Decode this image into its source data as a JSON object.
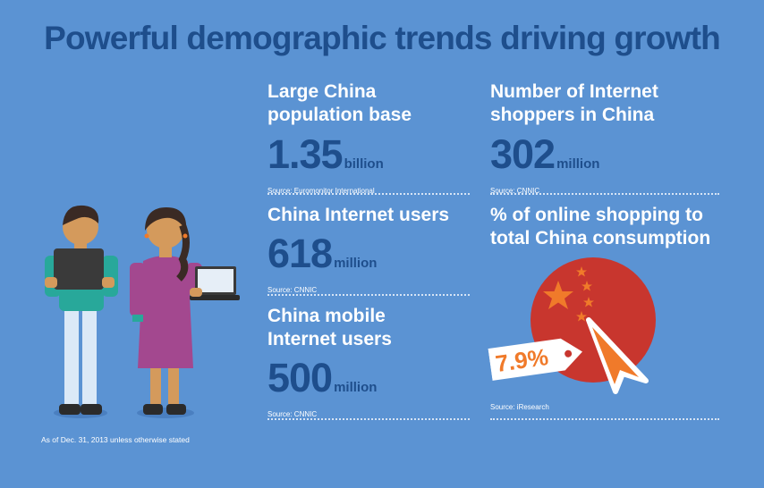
{
  "title": "Powerful demographic trends driving growth",
  "stats": {
    "population": {
      "label_line1": "Large China",
      "label_line2": "population base",
      "value": "1.35",
      "unit": "billion",
      "source": "Source: Euromonitor International"
    },
    "internet_users": {
      "label_line1": "China Internet users",
      "value": "618",
      "unit": "million",
      "source": "Source: CNNIC"
    },
    "mobile_users": {
      "label_line1": "China mobile",
      "label_line2": "Internet users",
      "value": "500",
      "unit": "million",
      "source": "Source: CNNIC"
    },
    "shoppers": {
      "label_line1": "Number of Internet",
      "label_line2": "shoppers in China",
      "value": "302",
      "unit": "million",
      "source": "Source: CNNIC"
    },
    "online_share": {
      "label_line1": "% of online shopping to",
      "label_line2": "total China consumption",
      "value": "7.9%",
      "source": "Source: iResearch"
    }
  },
  "footnote": "As of Dec. 31, 2013 unless otherwise stated",
  "colors": {
    "background": "#5b93d3",
    "title": "#1e4e8c",
    "flag_red": "#c8362e",
    "star_orange": "#f07a2a"
  },
  "icons": [
    "boy-with-tablet-figure",
    "girl-with-laptop-figure",
    "china-flag-circle-icon",
    "price-tag-icon",
    "cursor-arrow-icon"
  ]
}
